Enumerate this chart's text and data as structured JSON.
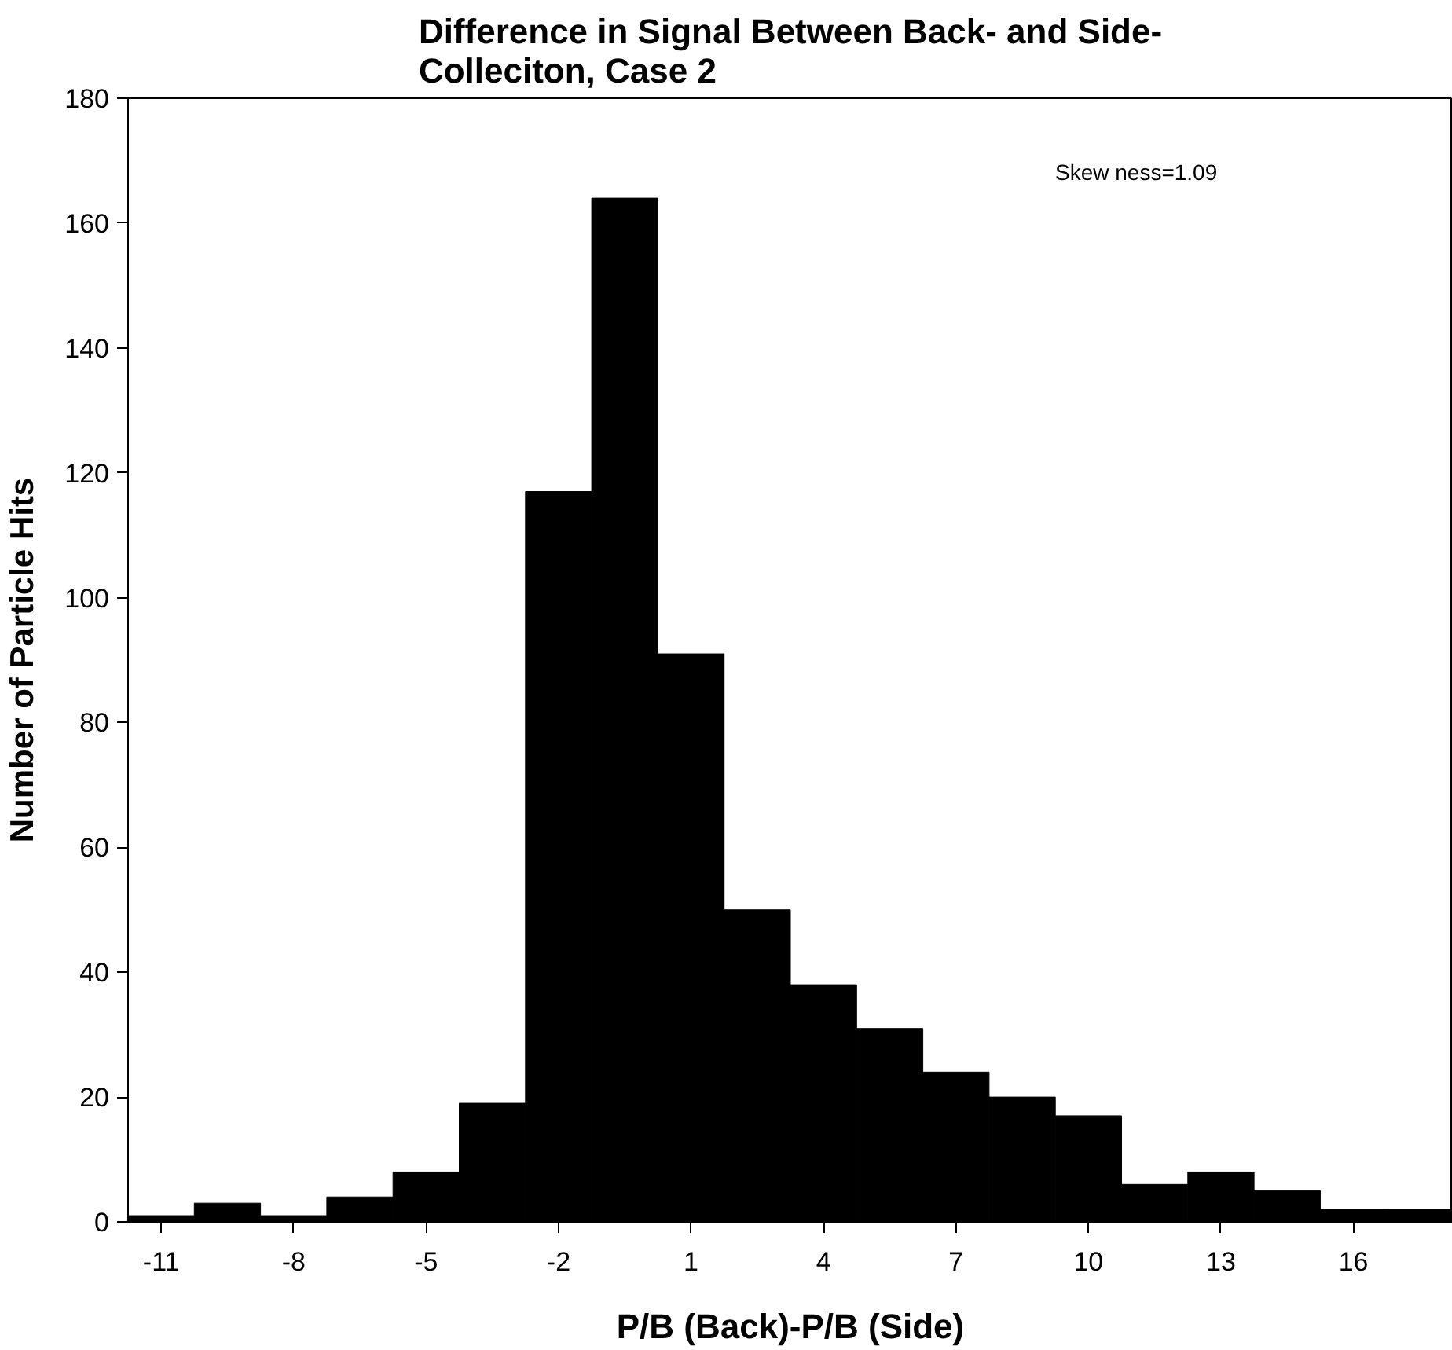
{
  "chart_data": {
    "type": "bar",
    "title": "Difference in Signal Between Back- and Side-Colleciton, Case 2",
    "xlabel": "P/B (Back)-P/B (Side)",
    "ylabel": "Number of Particle Hits",
    "categories": [
      "-11",
      null,
      "-8",
      null,
      "-5",
      null,
      "-2",
      null,
      "1",
      null,
      "4",
      null,
      "7",
      null,
      "10",
      null,
      "13",
      null,
      "16",
      null
    ],
    "values": [
      1,
      3,
      1,
      4,
      8,
      19,
      117,
      164,
      91,
      50,
      38,
      31,
      24,
      20,
      17,
      6,
      8,
      5,
      2,
      2
    ],
    "color": "#000000",
    "ylim": [
      0,
      180
    ],
    "yticks": [
      0,
      20,
      40,
      60,
      80,
      100,
      120,
      140,
      160,
      180
    ],
    "grid": false,
    "annotations": [
      "Skew ness=1.09"
    ]
  }
}
